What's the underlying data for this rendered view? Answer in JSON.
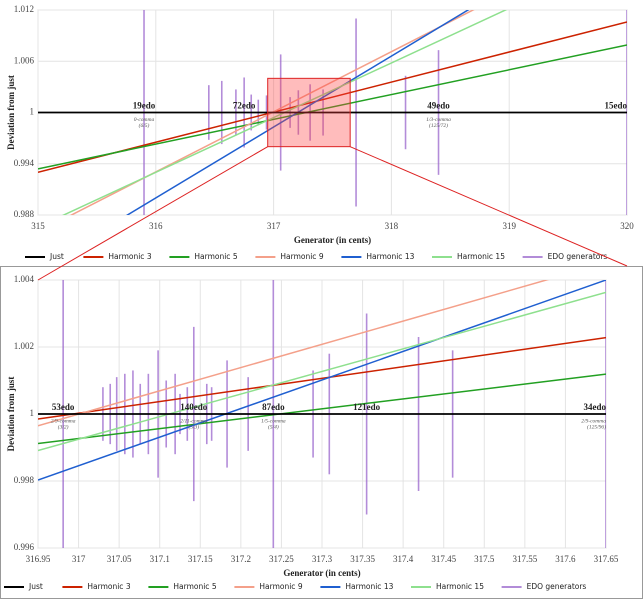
{
  "chart_data": [
    {
      "type": "line",
      "x_label": "Generator (in cents)",
      "y_label": "Deviation from just",
      "xlim": [
        315,
        320
      ],
      "xticks": [
        315,
        316,
        317,
        318,
        319,
        320
      ],
      "ylim": [
        0.988,
        1.012
      ],
      "yticks": [
        0.988,
        0.994,
        1,
        1.006,
        1.012
      ],
      "grid": true,
      "series": [
        {
          "name": "Just",
          "color": "#000000",
          "x": [
            315,
            320
          ],
          "values": [
            1,
            1
          ]
        },
        {
          "name": "Harmonic 3",
          "color": "#cc2200",
          "x": [
            315,
            320
          ],
          "values": [
            0.993,
            1.0106
          ]
        },
        {
          "name": "Harmonic 5",
          "color": "#22a022",
          "x": [
            315,
            320
          ],
          "values": [
            0.9934,
            1.0079
          ]
        },
        {
          "name": "Harmonic 9",
          "color": "#f4a08a",
          "x": [
            315,
            320
          ],
          "values": [
            0.986,
            1.0212
          ]
        },
        {
          "name": "Harmonic 13",
          "color": "#1f5fd0",
          "x": [
            315,
            320
          ],
          "values": [
            0.9817,
            1.0232
          ]
        },
        {
          "name": "Harmonic 15",
          "color": "#8ee08e",
          "x": [
            315,
            320
          ],
          "values": [
            0.9866,
            1.0186
          ]
        },
        {
          "name": "EDO generators",
          "color": "#9966cc",
          "x": [
            315.9,
            316.45,
            316.56,
            316.68,
            316.75,
            316.81,
            316.87,
            316.94,
            317.06,
            317.14,
            317.21,
            317.31,
            317.42,
            317.7,
            318.12,
            318.4,
            320
          ],
          "values": [
            1,
            1,
            1,
            1,
            1,
            1,
            1,
            1,
            1,
            1,
            1,
            1,
            1,
            1,
            1,
            1,
            1
          ],
          "errors": [
            0.014,
            0.0032,
            0.0037,
            0.0027,
            0.0041,
            0.0021,
            0.0015,
            0.002,
            0.0068,
            0.0018,
            0.0026,
            0.0033,
            0.0027,
            0.011,
            0.0043,
            0.0073,
            0.014
          ]
        }
      ],
      "annotations": [
        {
          "text": "19edo",
          "x": 315.9,
          "note": "0-comma",
          "ratio": "(6/5)"
        },
        {
          "text": "72edo",
          "x": 316.75
        },
        {
          "text": "49edo",
          "x": 318.4,
          "note": "1/3-comma",
          "ratio": "(125/72)"
        },
        {
          "text": "15edo",
          "x": 320
        }
      ]
    },
    {
      "type": "line",
      "x_label": "Generator (in cents)",
      "y_label": "Deviation from just",
      "xlim": [
        316.95,
        317.65
      ],
      "xticks": [
        316.95,
        317,
        317.05,
        317.1,
        317.15,
        317.2,
        317.25,
        317.3,
        317.35,
        317.4,
        317.45,
        317.5,
        317.55,
        317.6,
        317.65
      ],
      "ylim": [
        0.996,
        1.004
      ],
      "yticks": [
        0.996,
        0.998,
        1,
        1.002,
        1.004
      ],
      "grid": true,
      "series": [
        {
          "name": "Just",
          "color": "#000000",
          "x": [
            316.95,
            317.65
          ],
          "values": [
            1,
            1
          ]
        },
        {
          "name": "Harmonic 3",
          "color": "#cc2200",
          "x": [
            316.95,
            317.65
          ],
          "values": [
            0.99985,
            1.00228
          ]
        },
        {
          "name": "Harmonic 5",
          "color": "#22a022",
          "x": [
            316.95,
            317.65
          ],
          "values": [
            0.99912,
            1.00119
          ]
        },
        {
          "name": "Harmonic 9",
          "color": "#f4a08a",
          "x": [
            316.95,
            317.65
          ],
          "values": [
            0.99965,
            1.00451
          ]
        },
        {
          "name": "Harmonic 13",
          "color": "#1f5fd0",
          "x": [
            316.95,
            317.65
          ],
          "values": [
            0.99803,
            1.004
          ]
        },
        {
          "name": "Harmonic 15",
          "color": "#8ee08e",
          "x": [
            316.95,
            317.65
          ],
          "values": [
            0.99891,
            1.00363
          ]
        },
        {
          "name": "EDO generators",
          "color": "#9966cc",
          "x": [
            316.981,
            317.03,
            317.039,
            317.047,
            317.057,
            317.067,
            317.076,
            317.086,
            317.098,
            317.108,
            317.119,
            317.125,
            317.134,
            317.142,
            317.158,
            317.164,
            317.183,
            317.209,
            317.24,
            317.289,
            317.309,
            317.355,
            317.419,
            317.461,
            317.65
          ],
          "values": [
            1,
            1,
            1,
            1,
            1,
            1,
            1,
            1,
            1,
            1,
            1,
            1,
            1,
            1,
            1,
            1,
            1,
            1,
            1,
            1,
            1,
            1,
            1,
            1,
            1
          ],
          "errors": [
            0.0045,
            0.0008,
            0.0009,
            0.0011,
            0.0012,
            0.0013,
            0.0009,
            0.0012,
            0.0019,
            0.001,
            0.0012,
            0.0006,
            0.0008,
            0.0026,
            0.0009,
            0.0008,
            0.0016,
            0.0011,
            0.0045,
            0.0013,
            0.0018,
            0.003,
            0.0023,
            0.0019,
            0.0045
          ]
        }
      ],
      "annotations": [
        {
          "text": "53edo",
          "x": 316.981,
          "note": "2/9-comma",
          "ratio": "(3/2)"
        },
        {
          "text": "140edo",
          "x": 317.142,
          "note": "2/11-comma",
          "ratio": "(5/3)"
        },
        {
          "text": "87edo",
          "x": 317.24,
          "note": "1/5-comma",
          "ratio": "(5/4)"
        },
        {
          "text": "121edo",
          "x": 317.355
        },
        {
          "text": "34edo",
          "x": 317.65,
          "note": "2/9-comma",
          "ratio": "(125/96)"
        }
      ]
    }
  ]
}
